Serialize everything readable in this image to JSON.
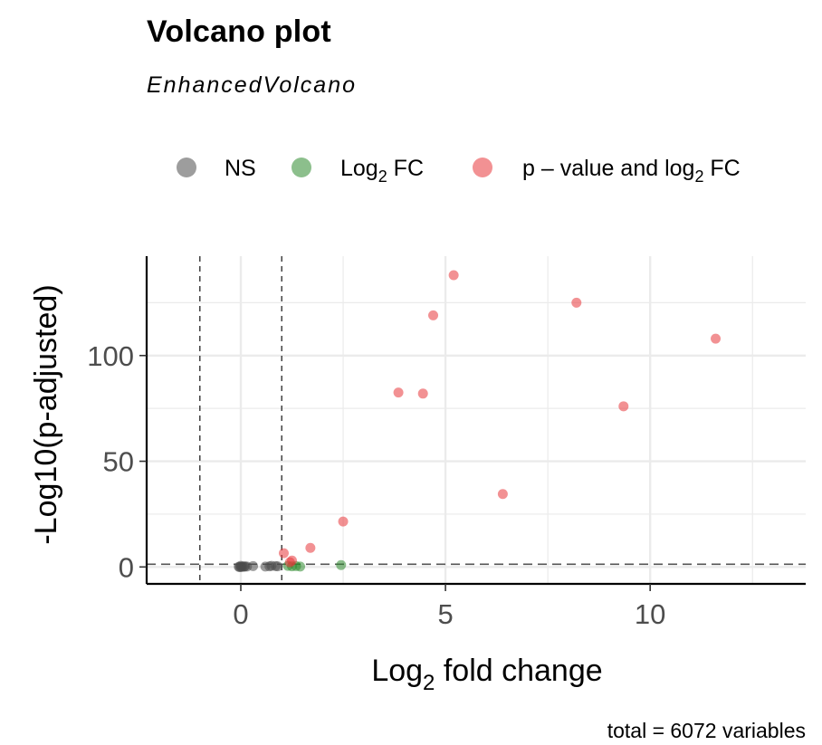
{
  "chart_data": {
    "type": "scatter",
    "title": "Volcano plot",
    "subtitle": "EnhancedVolcano",
    "xlabel": "Log2 fold change",
    "xlabel_parts": {
      "pre": "Log",
      "sub": "2",
      "post": " fold change"
    },
    "ylabel": "-Log10(p-adjusted)",
    "caption": "total = 6072 variables",
    "xlim": [
      -2.3,
      13.8
    ],
    "ylim": [
      -8,
      147
    ],
    "x_ticks": [
      0,
      5,
      10
    ],
    "y_ticks": [
      0,
      50,
      100
    ],
    "grid": true,
    "legend_position": "top",
    "thresholds": {
      "fold_change": [
        -1,
        1
      ],
      "p_cutoff": 1.3
    },
    "series": [
      {
        "name": "NS",
        "legend": {
          "pre": "NS",
          "sub": "",
          "post": ""
        },
        "color": "#4d4d4d",
        "points": [
          [
            0.0,
            0.0
          ],
          [
            0.02,
            0.1
          ],
          [
            0.05,
            0.2
          ],
          [
            0.08,
            0.1
          ],
          [
            -0.03,
            0.0
          ],
          [
            0.1,
            0.3
          ],
          [
            -0.05,
            0.1
          ],
          [
            0.15,
            0.2
          ],
          [
            0.0,
            0.5
          ],
          [
            0.3,
            0.4
          ],
          [
            0.7,
            0.3
          ],
          [
            0.85,
            0.4
          ],
          [
            0.9,
            0.3
          ],
          [
            0.6,
            0.2
          ],
          [
            0.75,
            0.5
          ]
        ]
      },
      {
        "name": "Log2 FC",
        "legend": {
          "pre": "Log",
          "sub": "2",
          "post": " FC"
        },
        "color": "#2e8b2e",
        "points": [
          [
            1.15,
            0.5
          ],
          [
            1.25,
            0.3
          ],
          [
            1.35,
            0.4
          ],
          [
            1.45,
            0.2
          ],
          [
            2.45,
            0.9
          ]
        ]
      },
      {
        "name": "p – value and log2 FC",
        "legend": {
          "pre": "p – value and log",
          "sub": "2",
          "post": " FC"
        },
        "color": "#e8363b",
        "points": [
          [
            1.05,
            6.5
          ],
          [
            1.25,
            3.0
          ],
          [
            1.2,
            2.2
          ],
          [
            1.7,
            9.0
          ],
          [
            2.5,
            21.5
          ],
          [
            3.85,
            82.5
          ],
          [
            4.45,
            82.0
          ],
          [
            4.7,
            119.0
          ],
          [
            5.2,
            138.0
          ],
          [
            6.4,
            34.5
          ],
          [
            8.2,
            125.0
          ],
          [
            9.35,
            76.0
          ],
          [
            11.6,
            108.0
          ]
        ]
      }
    ]
  }
}
